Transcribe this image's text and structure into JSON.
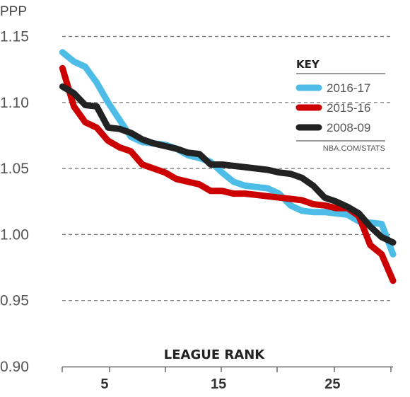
{
  "chart_data": {
    "type": "line",
    "ylabel": "PPP",
    "xlabel": "LEAGUE RANK",
    "xlim": [
      1,
      30
    ],
    "ylim": [
      0.9,
      1.15
    ],
    "x_ticks": [
      5,
      15,
      25
    ],
    "y_ticks": [
      "0.90",
      "0.95",
      "1.00",
      "1.05",
      "1.10",
      "1.15"
    ],
    "grid": "horizontal-dashed",
    "legend": {
      "title": "KEY",
      "position": "top-right",
      "source": "NBA.COM/STATS"
    },
    "series": [
      {
        "name": "2016-17",
        "color": "#4dbde8",
        "x": [
          1,
          2,
          3,
          4,
          5,
          6,
          7,
          8,
          9,
          10,
          11,
          12,
          13,
          14,
          15,
          16,
          17,
          18,
          19,
          20,
          21,
          22,
          23,
          24,
          25,
          26,
          27,
          28,
          29,
          30
        ],
        "values": [
          1.138,
          1.131,
          1.127,
          1.115,
          1.1,
          1.087,
          1.074,
          1.07,
          1.069,
          1.068,
          1.065,
          1.06,
          1.058,
          1.055,
          1.047,
          1.04,
          1.037,
          1.036,
          1.035,
          1.031,
          1.022,
          1.018,
          1.017,
          1.017,
          1.016,
          1.015,
          1.01,
          1.009,
          1.008,
          0.985
        ]
      },
      {
        "name": "2015-16",
        "color": "#cc0000",
        "x": [
          1,
          2,
          3,
          4,
          5,
          6,
          7,
          8,
          9,
          10,
          11,
          12,
          13,
          14,
          15,
          16,
          17,
          18,
          19,
          20,
          21,
          22,
          23,
          24,
          25,
          26,
          27,
          28,
          29,
          30
        ],
        "values": [
          1.126,
          1.097,
          1.085,
          1.081,
          1.071,
          1.066,
          1.063,
          1.053,
          1.05,
          1.047,
          1.042,
          1.04,
          1.038,
          1.033,
          1.033,
          1.031,
          1.031,
          1.03,
          1.029,
          1.028,
          1.027,
          1.026,
          1.023,
          1.022,
          1.02,
          1.02,
          1.014,
          0.992,
          0.985,
          0.965
        ]
      },
      {
        "name": "2008-09",
        "color": "#222222",
        "x": [
          1,
          2,
          3,
          4,
          5,
          6,
          7,
          8,
          9,
          10,
          11,
          12,
          13,
          14,
          15,
          16,
          17,
          18,
          19,
          20,
          21,
          22,
          23,
          24,
          25,
          26,
          27,
          28,
          29,
          30
        ],
        "values": [
          1.112,
          1.107,
          1.098,
          1.097,
          1.081,
          1.08,
          1.077,
          1.072,
          1.069,
          1.067,
          1.065,
          1.062,
          1.061,
          1.053,
          1.053,
          1.052,
          1.051,
          1.05,
          1.049,
          1.047,
          1.046,
          1.043,
          1.037,
          1.028,
          1.025,
          1.021,
          1.016,
          1.006,
          0.998,
          0.994
        ]
      }
    ]
  }
}
